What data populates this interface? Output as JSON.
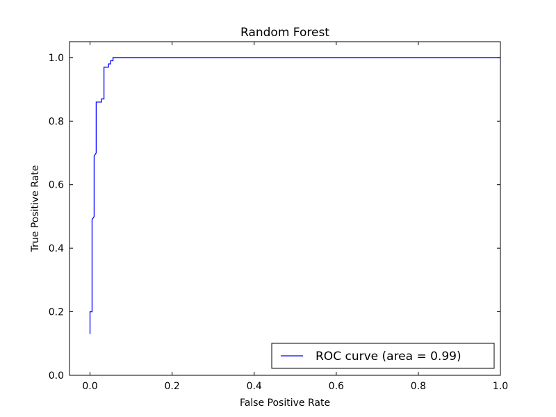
{
  "chart_data": {
    "type": "line",
    "title": "Random Forest",
    "xlabel": "False Positive Rate",
    "ylabel": "True Positive Rate",
    "xlim": [
      -0.05,
      1.0
    ],
    "ylim": [
      0.0,
      1.05
    ],
    "xticks": [
      0.0,
      0.2,
      0.4,
      0.6,
      0.8,
      1.0
    ],
    "yticks": [
      0.0,
      0.2,
      0.4,
      0.6,
      0.8,
      1.0
    ],
    "xtick_labels": [
      "0.0",
      "0.2",
      "0.4",
      "0.6",
      "0.8",
      "1.0"
    ],
    "ytick_labels": [
      "0.0",
      "0.2",
      "0.4",
      "0.6",
      "0.8",
      "1.0"
    ],
    "grid": false,
    "legend_position": "lower-right",
    "series": [
      {
        "name": "ROC curve (area = 0.99)",
        "color": "#0000ff",
        "x": [
          0.0,
          0.0,
          0.005,
          0.005,
          0.01,
          0.01,
          0.015,
          0.015,
          0.018,
          0.018,
          0.028,
          0.028,
          0.034,
          0.034,
          0.045,
          0.045,
          0.05,
          0.05,
          0.056,
          0.056,
          1.0
        ],
        "y": [
          0.13,
          0.2,
          0.2,
          0.49,
          0.5,
          0.69,
          0.7,
          0.86,
          0.86,
          0.86,
          0.86,
          0.87,
          0.87,
          0.97,
          0.97,
          0.98,
          0.98,
          0.99,
          0.99,
          1.0,
          1.0
        ]
      }
    ]
  }
}
